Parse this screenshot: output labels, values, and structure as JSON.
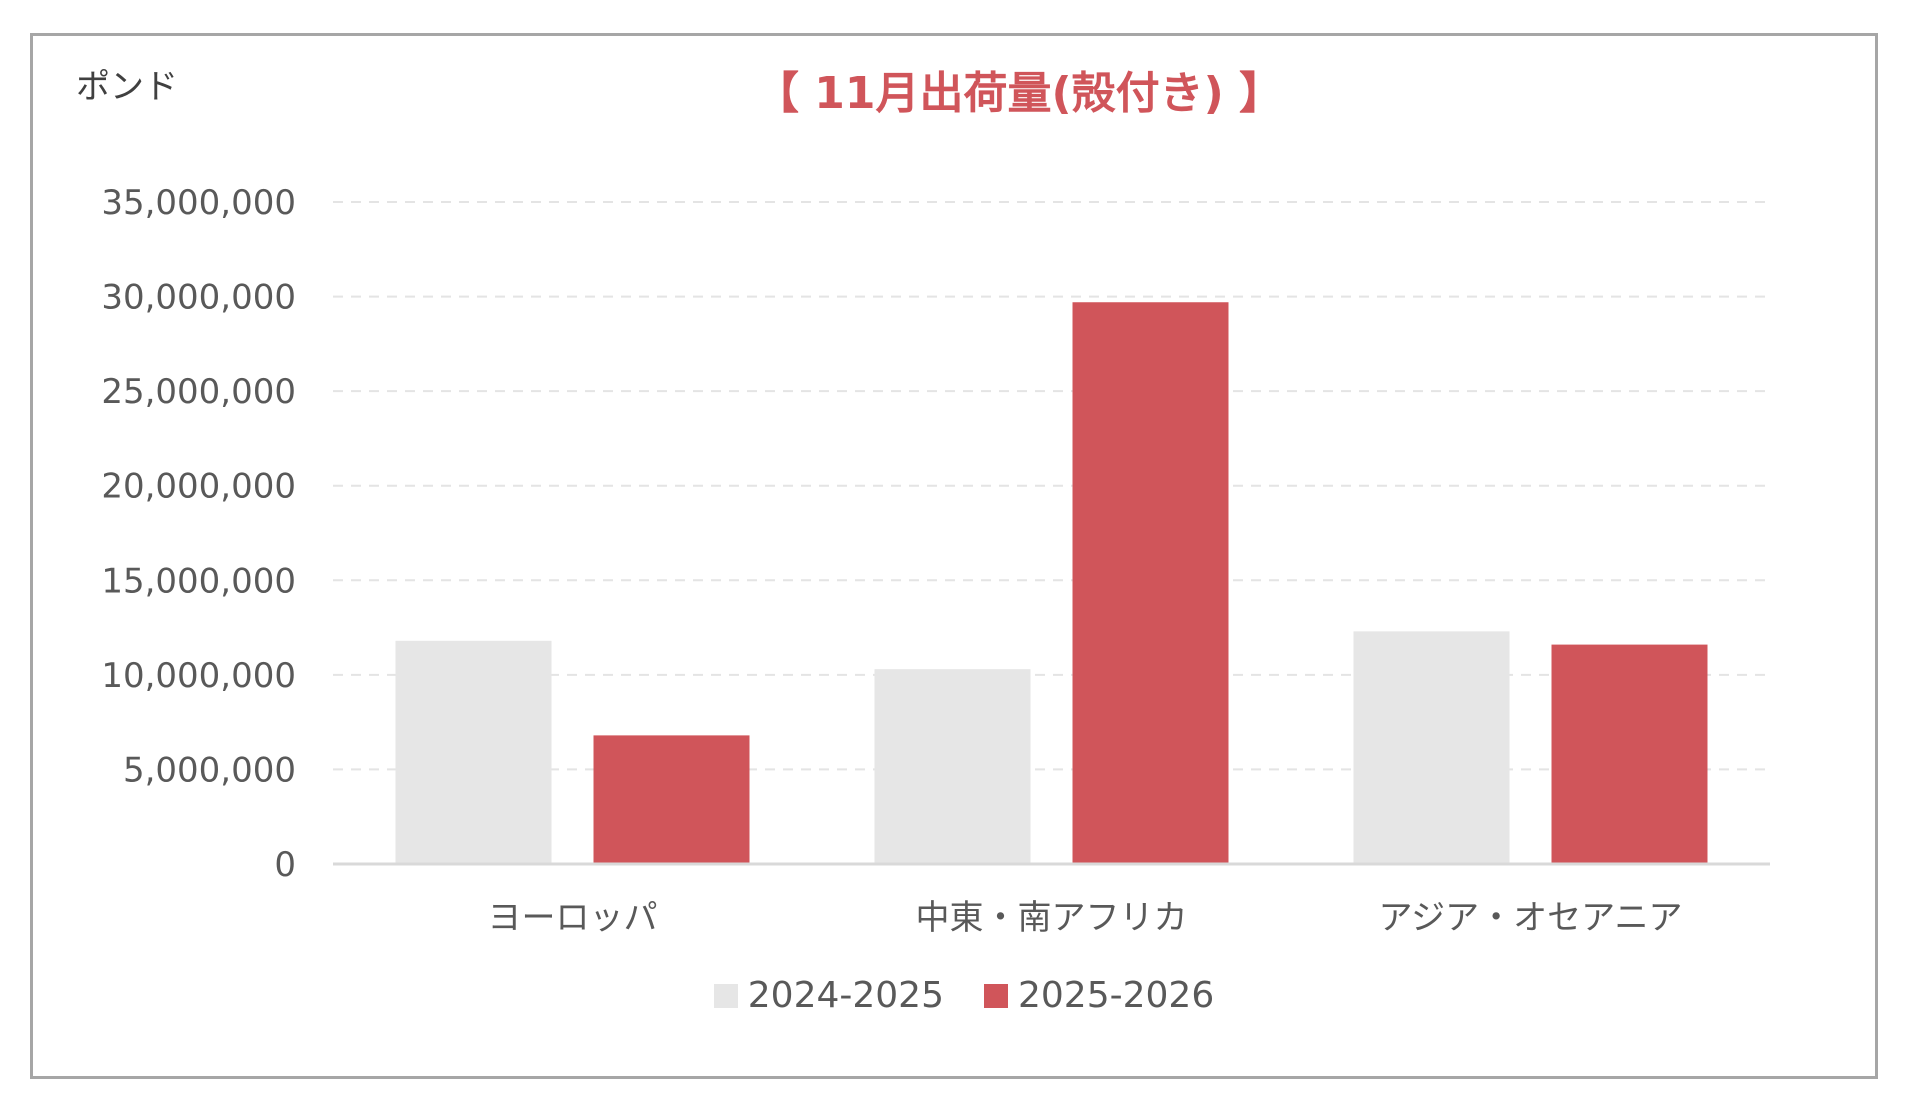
{
  "chart_data": {
    "type": "bar",
    "title": "【 11月出荷量(殻付き) 】",
    "ylabel": "ポンド",
    "xlabel": "",
    "categories": [
      "ヨーロッパ",
      "中東・南アフリカ",
      "アジア・オセアニア"
    ],
    "series": [
      {
        "name": "2024-2025",
        "values": [
          11800000,
          10300000,
          12300000
        ],
        "color": "#e6e6e6"
      },
      {
        "name": "2025-2026",
        "values": [
          6800000,
          29700000,
          11600000
        ],
        "color": "#d0555a"
      }
    ],
    "ylim": [
      0,
      35000000
    ],
    "yticks": [
      "0",
      "5,000,000",
      "10,000,000",
      "15,000,000",
      "20,000,000",
      "25,000,000",
      "30,000,000",
      "35,000,000"
    ],
    "grid": true,
    "legend": "bottom"
  }
}
